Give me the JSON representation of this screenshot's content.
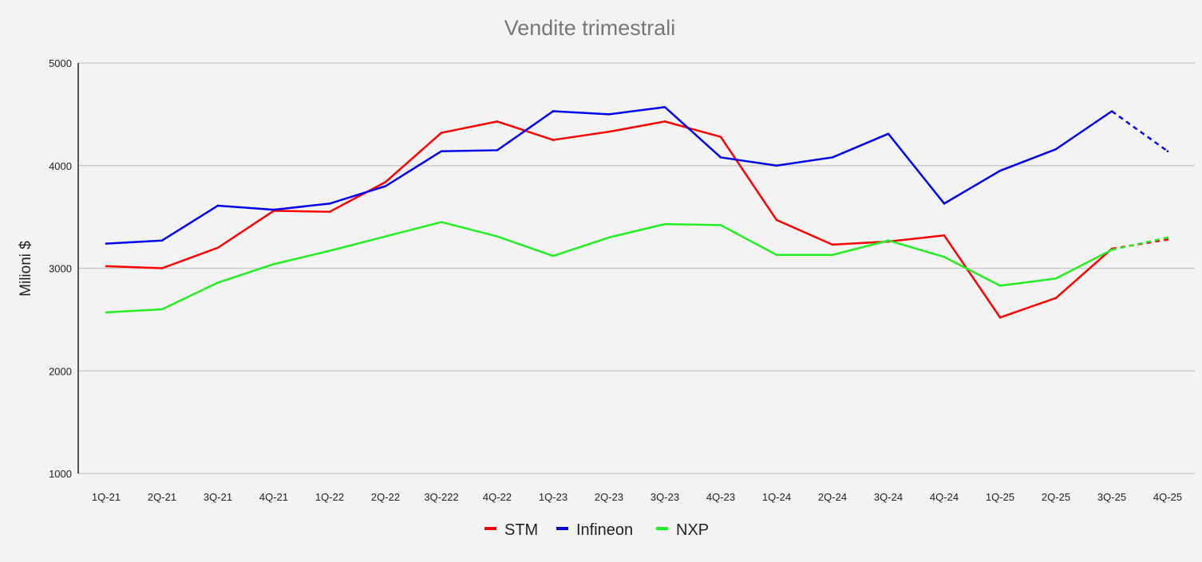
{
  "chart_data": {
    "type": "line",
    "title": "Vendite trimestrali",
    "xlabel": "",
    "ylabel": "Milioni $",
    "ylim": [
      1000,
      5000
    ],
    "yticks": [
      1000,
      2000,
      3000,
      4000,
      5000
    ],
    "grid": true,
    "legend_position": "bottom",
    "categories": [
      "1Q-21",
      "2Q-21",
      "3Q-21",
      "4Q-21",
      "1Q-22",
      "2Q-22",
      "3Q-222",
      "4Q-22",
      "1Q-23",
      "2Q-23",
      "3Q-23",
      "4Q-23",
      "1Q-24",
      "2Q-24",
      "3Q-24",
      "4Q-24",
      "1Q-25",
      "2Q-25",
      "3Q-25",
      "4Q-25"
    ],
    "dashed_last_segment": true,
    "series": [
      {
        "name": "STM",
        "color": "#ff0000",
        "values": [
          3020,
          3000,
          3200,
          3560,
          3550,
          3840,
          4320,
          4430,
          4250,
          4330,
          4430,
          4280,
          3470,
          3230,
          3260,
          3320,
          2520,
          2710,
          3190,
          3280
        ]
      },
      {
        "name": "Infineon",
        "color": "#0000ee",
        "values": [
          3240,
          3270,
          3610,
          3570,
          3630,
          3800,
          4140,
          4150,
          4530,
          4500,
          4570,
          4080,
          4000,
          4080,
          4310,
          3630,
          3950,
          4160,
          4530,
          4140
        ]
      },
      {
        "name": "NXP",
        "color": "#22ee22",
        "values": [
          2570,
          2600,
          2860,
          3040,
          3170,
          3310,
          3450,
          3310,
          3120,
          3300,
          3430,
          3420,
          3130,
          3130,
          3270,
          3110,
          2830,
          2900,
          3180,
          3300
        ]
      }
    ]
  }
}
